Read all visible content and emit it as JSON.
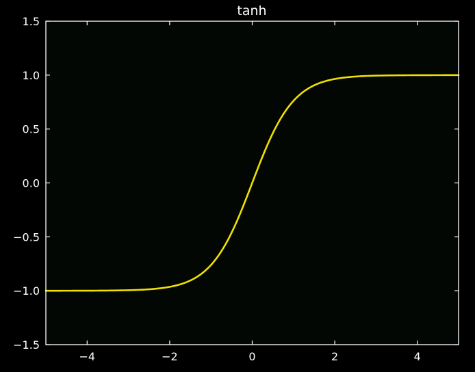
{
  "chart_data": {
    "type": "line",
    "title": "tanh",
    "xlabel": "",
    "ylabel": "",
    "xlim": [
      -5,
      5
    ],
    "ylim": [
      -1.5,
      1.5
    ],
    "x_ticks": [
      -4,
      -2,
      0,
      2,
      4
    ],
    "x_tick_labels": [
      "−4",
      "−2",
      "0",
      "2",
      "4"
    ],
    "y_ticks": [
      1.5,
      1.0,
      0.5,
      0.0,
      -0.5,
      -1.0,
      -1.5
    ],
    "y_tick_labels": [
      "1.5",
      "1.0",
      "0.5",
      "0.0",
      "−0.5",
      "−1.0",
      "−1.5"
    ],
    "grid": false,
    "background_color": "#000000",
    "plot_background_color": "#030703",
    "axes_color": "#ffffff",
    "series": [
      {
        "function": "tanh",
        "color": "#f0e000",
        "x": [
          -5,
          -4.5,
          -4,
          -3.5,
          -3,
          -2.5,
          -2,
          -1.75,
          -1.5,
          -1.25,
          -1,
          -0.75,
          -0.5,
          -0.25,
          0,
          0.25,
          0.5,
          0.75,
          1,
          1.25,
          1.5,
          1.75,
          2,
          2.5,
          3,
          3.5,
          4,
          4.5,
          5
        ],
        "y": [
          -0.9999,
          -0.9998,
          -0.9993,
          -0.9982,
          -0.9951,
          -0.9866,
          -0.964,
          -0.9414,
          -0.9051,
          -0.8483,
          -0.7616,
          -0.6351,
          -0.4621,
          -0.2449,
          0,
          0.2449,
          0.4621,
          0.6351,
          0.7616,
          0.8483,
          0.9051,
          0.9414,
          0.964,
          0.9866,
          0.9951,
          0.9982,
          0.9993,
          0.9998,
          0.9999
        ]
      }
    ]
  }
}
